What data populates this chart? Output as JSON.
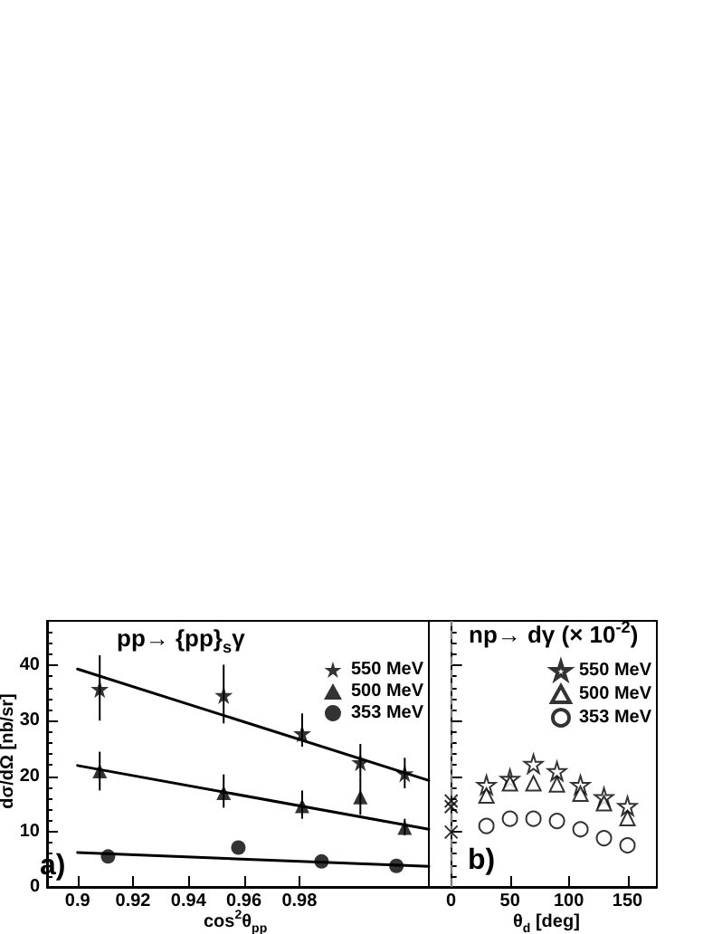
{
  "chart_data": [
    {
      "type": "scatter",
      "title": "pp→ {pp}$_{s}$γ",
      "xlabel": "cos$^{2}$θ$_{pp}$",
      "ylabel": "dσ/dΩ [nb/sr]",
      "annotations": [
        "a)"
      ],
      "series": [
        {
          "name": "550 MeV",
          "color": "#000000",
          "marker": "star",
          "x": [
            0.908,
            0.9527,
            0.981,
            1.002,
            1.018
          ],
          "values": [
            35.7,
            34.6,
            27.7,
            22.5,
            20.5
          ],
          "errors": [
            [
              30.0,
              41.8
            ],
            [
              29.5,
              40.1
            ],
            [
              25.3,
              31.3
            ],
            [
              19.8,
              25.8
            ],
            [
              17.8,
              23.3
            ]
          ]
        },
        {
          "name": "500 MeV",
          "color": "#000000",
          "marker": "triangle",
          "x": [
            0.908,
            0.9527,
            0.981,
            1.002,
            1.018
          ],
          "values": [
            20.9,
            17.0,
            14.6,
            16.2,
            10.7
          ],
          "errors": [
            [
              17.4,
              24.4
            ],
            [
              14.3,
              20.3
            ],
            [
              12.3,
              17.4
            ],
            [
              13.0,
              19.8
            ],
            [
              9.3,
              12.3
            ]
          ]
        },
        {
          "name": "353 MeV",
          "color": "#000000",
          "marker": "circle",
          "x": [
            0.911,
            0.958,
            0.988,
            1.015
          ],
          "values": [
            5.5,
            7.1,
            4.6,
            3.8
          ]
        },
        {
          "type": "line",
          "color": "#000000",
          "x": [
            0.9,
            1.0267
          ],
          "values": [
            39.3,
            19.2
          ]
        },
        {
          "type": "line",
          "color": "#000000",
          "x": [
            0.9,
            1.0267
          ],
          "values": [
            21.9,
            10.4
          ]
        },
        {
          "type": "line",
          "color": "#000000",
          "x": [
            0.9,
            1.0267
          ],
          "values": [
            6.2,
            3.7
          ]
        }
      ],
      "xlim": [
        0.889,
        1.0267
      ],
      "xticks": [
        0.9,
        0.92,
        0.94,
        0.96,
        0.98
      ],
      "ylim": [
        0,
        48
      ],
      "yticks": [
        0,
        10,
        20,
        30,
        40
      ],
      "grid": false,
      "legend": "top right"
    },
    {
      "type": "scatter",
      "title": "np→ dγ (× 10$^{-2}$)",
      "xlabel": "θ$_{d}$ [deg]",
      "annotations": [
        "b)"
      ],
      "x": [
        30,
        50,
        70,
        90,
        110,
        130,
        150
      ],
      "series": [
        {
          "name": "550 MeV",
          "color": "#000000",
          "marker": "star",
          "values": [
            18.4,
            19.5,
            22.2,
            20.9,
            18.4,
            16.2,
            14.6
          ]
        },
        {
          "name": "500 MeV",
          "color": "#000000",
          "marker": "triangle",
          "values": [
            16.5,
            18.7,
            18.7,
            18.5,
            16.8,
            15.1,
            12.4
          ]
        },
        {
          "name": "353 MeV",
          "color": "#000000",
          "marker": "circle",
          "values": [
            11.0,
            12.3,
            12.3,
            11.9,
            10.4,
            8.8,
            7.5
          ]
        },
        {
          "color": "#000000",
          "marker": "cross",
          "x": [
            0,
            0,
            0
          ],
          "values": [
            15.5,
            14.5,
            9.9
          ]
        }
      ],
      "ref_lines": [
        {
          "axis": "x",
          "value": 0,
          "color": "#808080",
          "line_style": "dashed"
        }
      ],
      "xlim": [
        -19,
        175
      ],
      "xticks": [
        0,
        50,
        100,
        150
      ],
      "ylim": [
        0,
        48
      ],
      "yticks": [
        0,
        10,
        20,
        30,
        40
      ],
      "tick_labels": "x",
      "grid": false,
      "legend": "top right"
    }
  ]
}
